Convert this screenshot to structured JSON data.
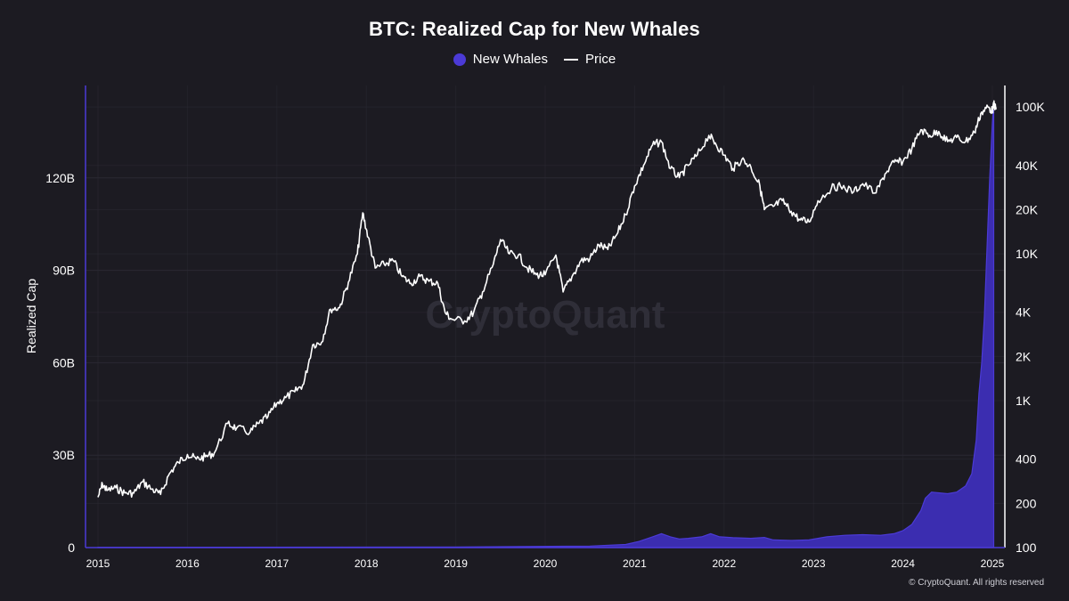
{
  "colors": {
    "background": "#1c1b22",
    "whales_fill": "#3b2db0",
    "whales_stroke": "#4b3ad6",
    "price_line": "#ffffff",
    "grid": "#2a2932",
    "left_axis": "#4b3ad6",
    "right_axis": "#ffffff",
    "text": "#ffffff",
    "watermark": "#2f2e38"
  },
  "footer": {
    "copyright": "© CryptoQuant. All rights reserved"
  },
  "watermark": "CryptoQuant",
  "chart_data": {
    "type": "area+line",
    "title": "BTC: Realized Cap for New Whales",
    "legend": [
      {
        "name": "New Whales",
        "marker": "dot"
      },
      {
        "name": "Price",
        "marker": "line"
      }
    ],
    "xlabel": "",
    "ylabel": "Realized Cap",
    "x_ticks": [
      "2015",
      "2016",
      "2017",
      "2018",
      "2019",
      "2020",
      "2021",
      "2022",
      "2023",
      "2024",
      "2025"
    ],
    "x_range": [
      2015.0,
      2025.15
    ],
    "y_left": {
      "label": "Realized Cap",
      "ticks": [
        {
          "v": 0,
          "label": "0"
        },
        {
          "v": 30,
          "label": "30B"
        },
        {
          "v": 60,
          "label": "60B"
        },
        {
          "v": 90,
          "label": "90B"
        },
        {
          "v": 120,
          "label": "120B"
        }
      ],
      "ylim": [
        0,
        150
      ],
      "unit": "billions USD"
    },
    "y_right": {
      "scale": "log",
      "ticks": [
        {
          "v": 100,
          "label": "100"
        },
        {
          "v": 200,
          "label": "200"
        },
        {
          "v": 400,
          "label": "400"
        },
        {
          "v": 1000,
          "label": "1K"
        },
        {
          "v": 2000,
          "label": "2K"
        },
        {
          "v": 4000,
          "label": "4K"
        },
        {
          "v": 10000,
          "label": "10K"
        },
        {
          "v": 20000,
          "label": "20K"
        },
        {
          "v": 40000,
          "label": "40K"
        },
        {
          "v": 100000,
          "label": "100K"
        }
      ],
      "ylim": [
        100,
        140000
      ]
    },
    "series": [
      {
        "name": "New Whales",
        "axis": "left",
        "type": "area",
        "points": [
          [
            2015.0,
            0.1
          ],
          [
            2019.0,
            0.2
          ],
          [
            2020.5,
            0.5
          ],
          [
            2020.9,
            1.0
          ],
          [
            2021.05,
            2.0
          ],
          [
            2021.2,
            3.5
          ],
          [
            2021.3,
            4.5
          ],
          [
            2021.4,
            3.5
          ],
          [
            2021.5,
            2.8
          ],
          [
            2021.6,
            3.0
          ],
          [
            2021.75,
            3.5
          ],
          [
            2021.85,
            4.5
          ],
          [
            2021.95,
            3.5
          ],
          [
            2022.1,
            3.2
          ],
          [
            2022.3,
            3.0
          ],
          [
            2022.45,
            3.3
          ],
          [
            2022.55,
            2.5
          ],
          [
            2022.75,
            2.3
          ],
          [
            2022.95,
            2.5
          ],
          [
            2023.15,
            3.5
          ],
          [
            2023.35,
            4.0
          ],
          [
            2023.55,
            4.2
          ],
          [
            2023.75,
            4.0
          ],
          [
            2023.9,
            4.5
          ],
          [
            2024.0,
            5.5
          ],
          [
            2024.1,
            7.5
          ],
          [
            2024.2,
            12.0
          ],
          [
            2024.25,
            16.0
          ],
          [
            2024.32,
            18.0
          ],
          [
            2024.5,
            17.5
          ],
          [
            2024.6,
            18.0
          ],
          [
            2024.7,
            20.0
          ],
          [
            2024.77,
            24.0
          ],
          [
            2024.82,
            35.0
          ],
          [
            2024.85,
            50.0
          ],
          [
            2024.88,
            60.0
          ],
          [
            2024.91,
            75.0
          ],
          [
            2024.93,
            90.0
          ],
          [
            2024.95,
            105.0
          ],
          [
            2024.97,
            120.0
          ],
          [
            2024.99,
            132.0
          ],
          [
            2025.0,
            138.0
          ],
          [
            2025.01,
            142.0
          ],
          [
            2025.015,
            142.0
          ]
        ]
      },
      {
        "name": "Price",
        "axis": "right",
        "type": "line",
        "points": [
          [
            2015.0,
            220
          ],
          [
            2015.05,
            270
          ],
          [
            2015.1,
            245
          ],
          [
            2015.2,
            255
          ],
          [
            2015.3,
            235
          ],
          [
            2015.4,
            235
          ],
          [
            2015.5,
            280
          ],
          [
            2015.6,
            250
          ],
          [
            2015.7,
            230
          ],
          [
            2015.8,
            320
          ],
          [
            2015.9,
            380
          ],
          [
            2016.0,
            430
          ],
          [
            2016.1,
            400
          ],
          [
            2016.2,
            415
          ],
          [
            2016.3,
            440
          ],
          [
            2016.45,
            700
          ],
          [
            2016.55,
            650
          ],
          [
            2016.7,
            610
          ],
          [
            2016.8,
            700
          ],
          [
            2016.9,
            780
          ],
          [
            2017.0,
            960
          ],
          [
            2017.1,
            1050
          ],
          [
            2017.2,
            1150
          ],
          [
            2017.3,
            1300
          ],
          [
            2017.4,
            2400
          ],
          [
            2017.5,
            2500
          ],
          [
            2017.6,
            4200
          ],
          [
            2017.7,
            4300
          ],
          [
            2017.8,
            6400
          ],
          [
            2017.9,
            10000
          ],
          [
            2017.96,
            19000
          ],
          [
            2018.02,
            13000
          ],
          [
            2018.1,
            8000
          ],
          [
            2018.2,
            8500
          ],
          [
            2018.3,
            9000
          ],
          [
            2018.4,
            7000
          ],
          [
            2018.5,
            6300
          ],
          [
            2018.6,
            7000
          ],
          [
            2018.7,
            6500
          ],
          [
            2018.8,
            6300
          ],
          [
            2018.88,
            4000
          ],
          [
            2018.95,
            3600
          ],
          [
            2019.1,
            3500
          ],
          [
            2019.2,
            4000
          ],
          [
            2019.3,
            5500
          ],
          [
            2019.42,
            8500
          ],
          [
            2019.5,
            12500
          ],
          [
            2019.6,
            10000
          ],
          [
            2019.7,
            9800
          ],
          [
            2019.8,
            8000
          ],
          [
            2019.9,
            7200
          ],
          [
            2020.0,
            7200
          ],
          [
            2020.12,
            9800
          ],
          [
            2020.2,
            5500
          ],
          [
            2020.3,
            7000
          ],
          [
            2020.4,
            9000
          ],
          [
            2020.5,
            9300
          ],
          [
            2020.6,
            11500
          ],
          [
            2020.7,
            10700
          ],
          [
            2020.8,
            13500
          ],
          [
            2020.9,
            18500
          ],
          [
            2021.0,
            29000
          ],
          [
            2021.1,
            40000
          ],
          [
            2021.2,
            55000
          ],
          [
            2021.3,
            58000
          ],
          [
            2021.4,
            38000
          ],
          [
            2021.5,
            33000
          ],
          [
            2021.6,
            40000
          ],
          [
            2021.7,
            47000
          ],
          [
            2021.83,
            64000
          ],
          [
            2021.9,
            57000
          ],
          [
            2022.0,
            47000
          ],
          [
            2022.1,
            38000
          ],
          [
            2022.2,
            44000
          ],
          [
            2022.3,
            39000
          ],
          [
            2022.4,
            29000
          ],
          [
            2022.45,
            20000
          ],
          [
            2022.55,
            21000
          ],
          [
            2022.65,
            23000
          ],
          [
            2022.75,
            19500
          ],
          [
            2022.85,
            17000
          ],
          [
            2022.95,
            16500
          ],
          [
            2023.05,
            23000
          ],
          [
            2023.2,
            28000
          ],
          [
            2023.3,
            29000
          ],
          [
            2023.45,
            26500
          ],
          [
            2023.55,
            30000
          ],
          [
            2023.7,
            26000
          ],
          [
            2023.8,
            35000
          ],
          [
            2023.9,
            42000
          ],
          [
            2024.0,
            42500
          ],
          [
            2024.1,
            52000
          ],
          [
            2024.2,
            70000
          ],
          [
            2024.3,
            64000
          ],
          [
            2024.4,
            68000
          ],
          [
            2024.5,
            58000
          ],
          [
            2024.6,
            62000
          ],
          [
            2024.7,
            58000
          ],
          [
            2024.8,
            67000
          ],
          [
            2024.87,
            90000
          ],
          [
            2024.95,
            100000
          ],
          [
            2025.0,
            94000
          ],
          [
            2025.02,
            105000
          ],
          [
            2025.04,
            96000
          ]
        ]
      }
    ]
  }
}
